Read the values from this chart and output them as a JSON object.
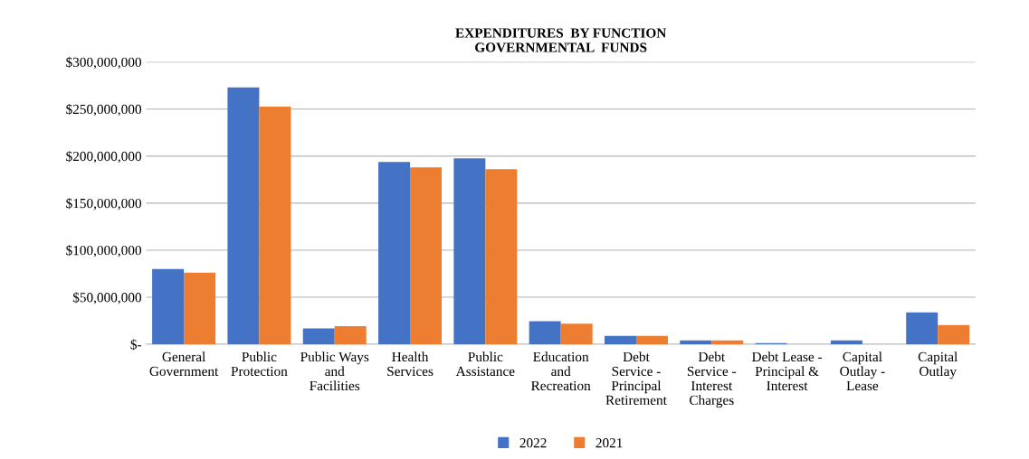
{
  "chart_data": {
    "type": "bar",
    "title": "EXPENDITURES  BY FUNCTION\nGOVERNMENTAL  FUNDS",
    "categories": [
      "General\nGovernment",
      "Public\nProtection",
      "Public Ways\nand\nFacilities",
      "Health\nServices",
      "Public\nAssistance",
      "Education\nand\nRecreation",
      "Debt\nService -\nPrincipal\nRetirement",
      "Debt\nService -\nInterest\nCharges",
      "Debt Lease -\nPrincipal &\nInterest",
      "Capital\nOutlay -\nLease",
      "Capital\nOutlay"
    ],
    "series": [
      {
        "name": "2022",
        "color": "#4472c4",
        "values": [
          80000000,
          273000000,
          16700000,
          193700000,
          197500000,
          24500000,
          8900000,
          4000000,
          1300000,
          4000000,
          33800000
        ]
      },
      {
        "name": "2021",
        "color": "#ed7d31",
        "values": [
          76000000,
          252500000,
          19300000,
          188000000,
          186000000,
          21900000,
          8900000,
          4000000,
          0,
          0,
          20500000
        ]
      }
    ],
    "ylim": [
      0,
      300000000
    ],
    "yticks": [
      {
        "value": 0,
        "label": "$-"
      },
      {
        "value": 50000000,
        "label": "$50,000,000"
      },
      {
        "value": 100000000,
        "label": "$100,000,000"
      },
      {
        "value": 150000000,
        "label": "$150,000,000"
      },
      {
        "value": 200000000,
        "label": "$200,000,000"
      },
      {
        "value": 250000000,
        "label": "$250,000,000"
      },
      {
        "value": 300000000,
        "label": "$300,000,000"
      }
    ],
    "grid": "y",
    "legend": "bottom"
  }
}
